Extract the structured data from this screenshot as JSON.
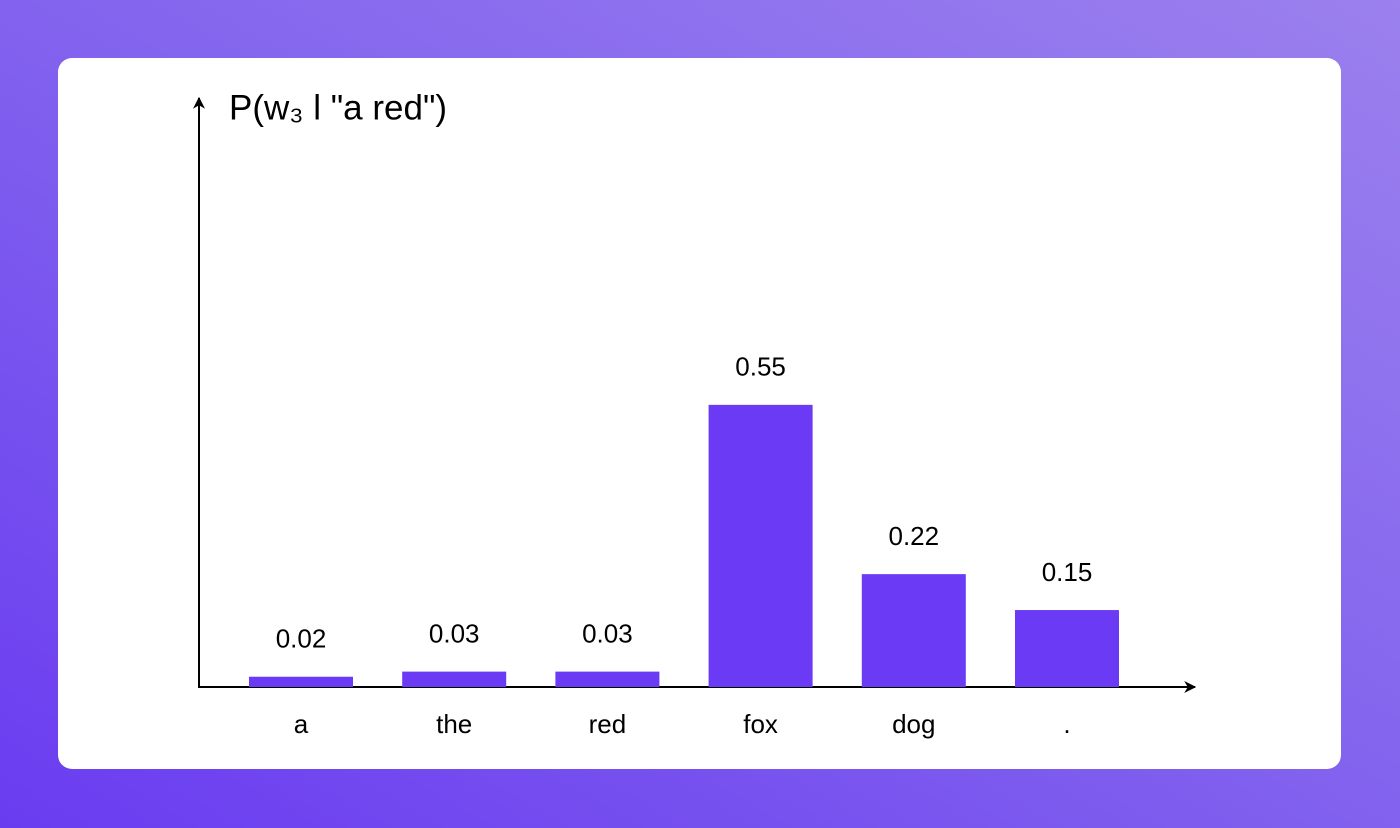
{
  "chart_data": {
    "type": "bar",
    "title": "P(w₃ l \"a red\")",
    "categories": [
      "a",
      "the",
      "red",
      "fox",
      "dog",
      "."
    ],
    "values": [
      0.02,
      0.03,
      0.03,
      0.55,
      0.22,
      0.15
    ],
    "color": "#6a3af5"
  }
}
